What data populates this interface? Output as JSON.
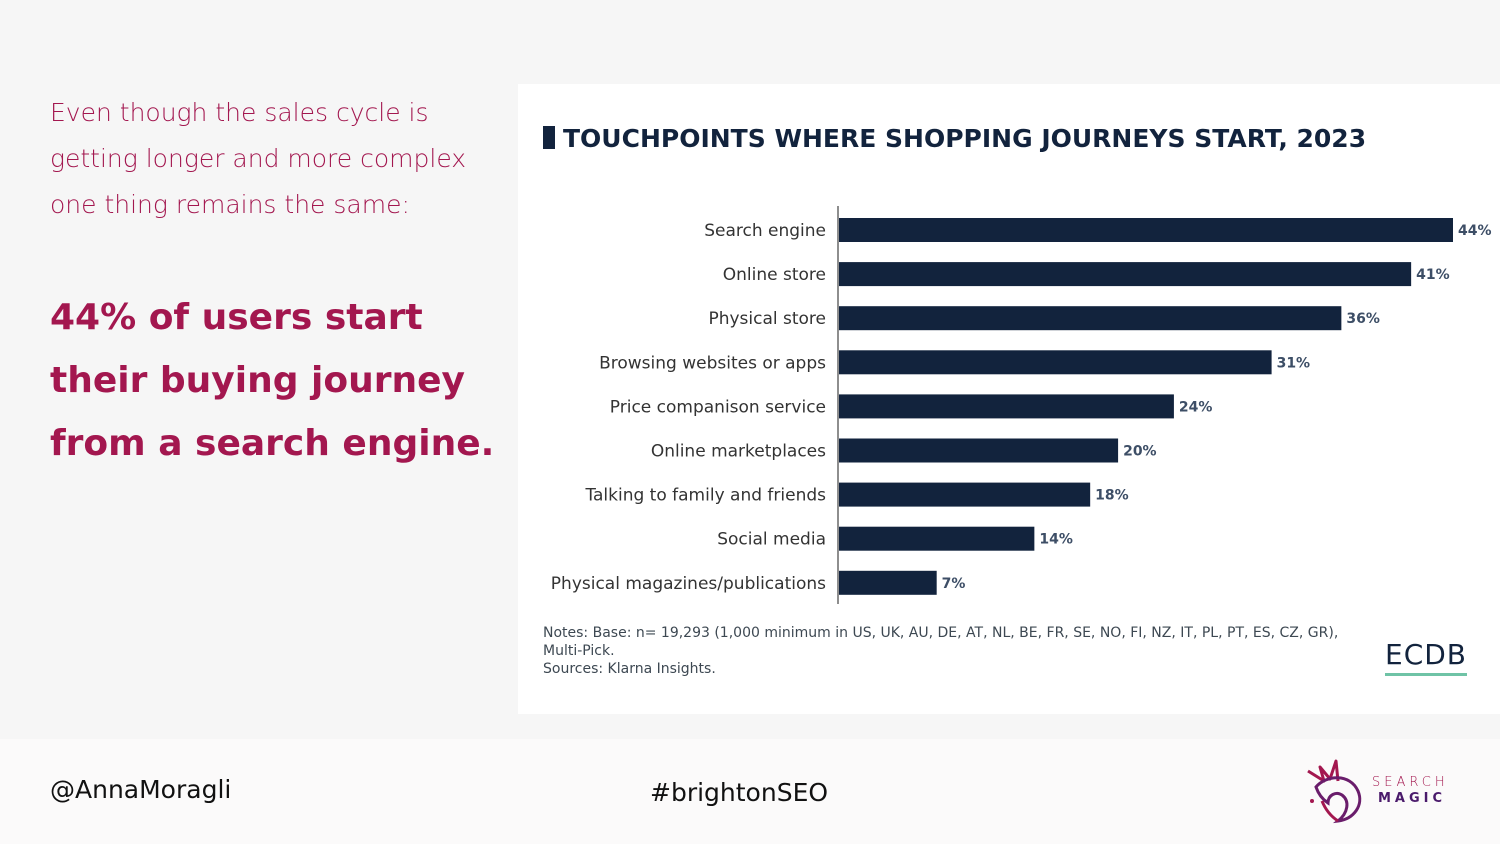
{
  "left_panel": {
    "intro": "Even though the sales cycle is getting longer and more complex one thing remains the same:",
    "headline": "44% of users start their buying journey from a search engine."
  },
  "colors": {
    "accent": "#a3174f",
    "bar": "#12233d",
    "ecdb_underline": "#6fc3a6"
  },
  "chart_data": {
    "type": "bar",
    "orientation": "horizontal",
    "title": "TOUCHPOINTS WHERE SHOPPING JOURNEYS START, 2023",
    "categories": [
      "Search engine",
      "Online store",
      "Physical store",
      "Browsing websites or apps",
      "Price companison service",
      "Online marketplaces",
      "Talking to family and friends",
      "Social media",
      "Physical magazines/publications"
    ],
    "values": [
      44,
      41,
      36,
      31,
      24,
      20,
      18,
      14,
      7
    ],
    "value_labels": [
      "44%",
      "41%",
      "36%",
      "31%",
      "24%",
      "20%",
      "18%",
      "14%",
      "7%"
    ],
    "unit": "%",
    "xlim": [
      0,
      44
    ],
    "grid": false
  },
  "notes": {
    "line1": "Notes: Base: n= 19,293 (1,000 minimum in US, UK, AU, DE, AT, NL, BE, FR, SE, NO, FI, NZ, IT, PL, PT, ES, CZ, GR),",
    "line2": "Multi-Pick.",
    "line3": "Sources: Klarna Insights."
  },
  "source_logo": "ECDB",
  "footer": {
    "handle": "@AnnaMoragli",
    "hashtag": "#brightonSEO",
    "brand_line1": "SEARCH",
    "brand_line2": "MAGIC",
    "brand_icon": "unicorn-icon"
  }
}
